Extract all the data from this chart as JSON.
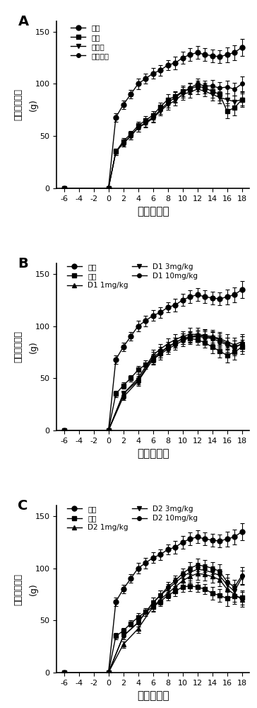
{
  "x_ticks": [
    -6,
    -4,
    -2,
    0,
    2,
    4,
    6,
    8,
    10,
    12,
    14,
    16,
    18
  ],
  "xlim": [
    -7,
    19
  ],
  "ylim": [
    0,
    160
  ],
  "yticks": [
    0,
    50,
    100,
    150
  ],
  "panel_labels": [
    "A",
    "B",
    "C"
  ],
  "xlabel": "时间（天）",
  "ylabel": "动物体重增长",
  "ylabel_unit": "(g)",
  "A": {
    "series": [
      {
        "label": "正常",
        "marker": "o",
        "x": [
          -6,
          0,
          1,
          2,
          3,
          4,
          5,
          6,
          7,
          8,
          9,
          10,
          11,
          12,
          13,
          14,
          15,
          16,
          17,
          18
        ],
        "y": [
          0,
          0,
          68,
          80,
          90,
          100,
          105,
          110,
          113,
          118,
          120,
          125,
          128,
          130,
          128,
          127,
          126,
          128,
          130,
          135
        ],
        "yerr": [
          0,
          0,
          4,
          4,
          4,
          5,
          5,
          5,
          5,
          5,
          6,
          6,
          6,
          6,
          6,
          6,
          6,
          7,
          7,
          8
        ]
      },
      {
        "label": "模型",
        "marker": "s",
        "x": [
          -6,
          0,
          1,
          2,
          3,
          4,
          5,
          6,
          7,
          8,
          9,
          10,
          11,
          12,
          13,
          14,
          15,
          16,
          17,
          18
        ],
        "y": [
          0,
          0,
          35,
          45,
          52,
          60,
          65,
          70,
          78,
          85,
          88,
          93,
          95,
          98,
          96,
          93,
          90,
          74,
          77,
          85
        ],
        "yerr": [
          0,
          0,
          3,
          3,
          3,
          4,
          4,
          4,
          4,
          5,
          5,
          5,
          5,
          5,
          5,
          6,
          6,
          7,
          7,
          7
        ]
      },
      {
        "label": "波生坦",
        "marker": "v",
        "x": [
          -6,
          0,
          1,
          2,
          3,
          4,
          5,
          6,
          7,
          8,
          9,
          10,
          11,
          12,
          13,
          14,
          15,
          16,
          17,
          18
        ],
        "y": [
          0,
          0,
          35,
          43,
          50,
          58,
          62,
          67,
          74,
          80,
          84,
          90,
          92,
          95,
          93,
          90,
          87,
          85,
          83,
          85
        ],
        "yerr": [
          0,
          0,
          3,
          3,
          3,
          4,
          4,
          4,
          4,
          5,
          5,
          5,
          5,
          5,
          5,
          6,
          6,
          6,
          6,
          6
        ]
      },
      {
        "label": "法舒地尔",
        "marker": "o",
        "markersize": 4,
        "x": [
          -6,
          0,
          1,
          2,
          3,
          4,
          5,
          6,
          7,
          8,
          9,
          10,
          11,
          12,
          13,
          14,
          15,
          16,
          17,
          18
        ],
        "y": [
          0,
          0,
          35,
          43,
          50,
          58,
          63,
          68,
          75,
          82,
          87,
          92,
          96,
          100,
          98,
          98,
          96,
          97,
          95,
          100
        ],
        "yerr": [
          0,
          0,
          3,
          3,
          3,
          4,
          4,
          4,
          4,
          5,
          5,
          5,
          5,
          5,
          5,
          6,
          6,
          6,
          6,
          7
        ]
      }
    ]
  },
  "B": {
    "series": [
      {
        "label": "正常",
        "marker": "o",
        "x": [
          -6,
          0,
          1,
          2,
          3,
          4,
          5,
          6,
          7,
          8,
          9,
          10,
          11,
          12,
          13,
          14,
          15,
          16,
          17,
          18
        ],
        "y": [
          0,
          0,
          68,
          80,
          90,
          100,
          105,
          110,
          113,
          118,
          120,
          125,
          128,
          130,
          128,
          127,
          126,
          128,
          130,
          135
        ],
        "yerr": [
          0,
          0,
          4,
          4,
          4,
          5,
          5,
          5,
          5,
          5,
          6,
          6,
          6,
          6,
          6,
          6,
          6,
          7,
          7,
          8
        ]
      },
      {
        "label": "模型",
        "marker": "s",
        "x": [
          -6,
          0,
          1,
          2,
          3,
          4,
          5,
          6,
          7,
          8,
          9,
          10,
          11,
          12,
          13,
          14,
          15,
          16,
          17,
          18
        ],
        "y": [
          0,
          0,
          35,
          43,
          50,
          58,
          63,
          68,
          74,
          80,
          84,
          88,
          88,
          87,
          84,
          80,
          76,
          72,
          75,
          80
        ],
        "yerr": [
          0,
          0,
          3,
          3,
          3,
          4,
          4,
          4,
          4,
          5,
          5,
          5,
          5,
          5,
          5,
          6,
          6,
          7,
          7,
          7
        ]
      },
      {
        "label": "D1 1mg/kg",
        "marker": "^",
        "x": [
          -6,
          0,
          2,
          4,
          6,
          7,
          8,
          9,
          10,
          11,
          12,
          13,
          14,
          15,
          16,
          17,
          18
        ],
        "y": [
          0,
          0,
          35,
          50,
          72,
          78,
          83,
          87,
          90,
          92,
          92,
          91,
          90,
          88,
          85,
          82,
          85
        ],
        "yerr": [
          0,
          0,
          3,
          4,
          5,
          5,
          5,
          5,
          5,
          6,
          6,
          6,
          6,
          6,
          7,
          7,
          7
        ]
      },
      {
        "label": "D1 3mg/kg",
        "marker": "v",
        "x": [
          -6,
          0,
          2,
          4,
          6,
          7,
          8,
          9,
          10,
          11,
          12,
          13,
          14,
          15,
          16,
          17,
          18
        ],
        "y": [
          0,
          0,
          35,
          48,
          70,
          75,
          80,
          84,
          88,
          90,
          91,
          90,
          89,
          87,
          83,
          80,
          83
        ],
        "yerr": [
          0,
          0,
          3,
          4,
          5,
          5,
          5,
          5,
          5,
          5,
          5,
          6,
          6,
          6,
          6,
          6,
          7
        ]
      },
      {
        "label": "D1 10mg/kg",
        "marker": "o",
        "markersize": 4,
        "x": [
          -6,
          0,
          2,
          4,
          6,
          7,
          8,
          9,
          10,
          11,
          12,
          13,
          14,
          15,
          16,
          17,
          18
        ],
        "y": [
          0,
          0,
          32,
          47,
          68,
          73,
          78,
          82,
          86,
          89,
          90,
          89,
          88,
          85,
          82,
          79,
          83
        ],
        "yerr": [
          0,
          0,
          3,
          4,
          5,
          5,
          5,
          5,
          5,
          5,
          5,
          6,
          6,
          6,
          7,
          7,
          7
        ]
      }
    ]
  },
  "C": {
    "series": [
      {
        "label": "正常",
        "marker": "o",
        "x": [
          -6,
          0,
          1,
          2,
          3,
          4,
          5,
          6,
          7,
          8,
          9,
          10,
          11,
          12,
          13,
          14,
          15,
          16,
          17,
          18
        ],
        "y": [
          0,
          0,
          68,
          80,
          90,
          100,
          105,
          110,
          113,
          118,
          120,
          125,
          128,
          130,
          128,
          127,
          126,
          128,
          130,
          135
        ],
        "yerr": [
          0,
          0,
          4,
          4,
          4,
          5,
          5,
          5,
          5,
          5,
          6,
          6,
          6,
          6,
          6,
          6,
          6,
          7,
          7,
          8
        ]
      },
      {
        "label": "模型",
        "marker": "s",
        "x": [
          -6,
          0,
          1,
          2,
          3,
          4,
          5,
          6,
          7,
          8,
          9,
          10,
          11,
          12,
          13,
          14,
          15,
          16,
          17,
          18
        ],
        "y": [
          0,
          0,
          35,
          40,
          47,
          53,
          58,
          63,
          68,
          74,
          78,
          82,
          83,
          82,
          80,
          76,
          74,
          71,
          73,
          72
        ],
        "yerr": [
          0,
          0,
          3,
          3,
          3,
          4,
          4,
          4,
          4,
          5,
          5,
          5,
          5,
          5,
          5,
          6,
          6,
          7,
          7,
          7
        ]
      },
      {
        "label": "D2 1mg/kg",
        "marker": "^",
        "x": [
          -6,
          0,
          2,
          4,
          6,
          7,
          8,
          9,
          10,
          11,
          12,
          13,
          14,
          15,
          16,
          17,
          18
        ],
        "y": [
          0,
          0,
          27,
          42,
          63,
          70,
          76,
          82,
          88,
          92,
          95,
          94,
          92,
          89,
          80,
          75,
          70
        ],
        "yerr": [
          0,
          0,
          3,
          4,
          5,
          5,
          5,
          5,
          5,
          6,
          6,
          6,
          6,
          6,
          7,
          7,
          7
        ]
      },
      {
        "label": "D2 3mg/kg",
        "marker": "v",
        "x": [
          -6,
          0,
          2,
          4,
          6,
          7,
          8,
          9,
          10,
          11,
          12,
          13,
          14,
          15,
          16,
          17,
          18
        ],
        "y": [
          0,
          0,
          35,
          48,
          67,
          74,
          80,
          86,
          92,
          96,
          99,
          98,
          96,
          93,
          84,
          78,
          91
        ],
        "yerr": [
          0,
          0,
          3,
          4,
          5,
          5,
          5,
          5,
          5,
          6,
          6,
          6,
          6,
          6,
          7,
          7,
          7
        ]
      },
      {
        "label": "D2 10mg/kg",
        "marker": "o",
        "markersize": 4,
        "x": [
          -6,
          0,
          2,
          4,
          6,
          7,
          8,
          9,
          10,
          11,
          12,
          13,
          14,
          15,
          16,
          17,
          18
        ],
        "y": [
          0,
          0,
          35,
          48,
          67,
          74,
          82,
          88,
          95,
          100,
          103,
          102,
          100,
          97,
          87,
          82,
          93
        ],
        "yerr": [
          0,
          0,
          3,
          4,
          5,
          5,
          5,
          5,
          5,
          6,
          6,
          6,
          6,
          7,
          7,
          7,
          8
        ]
      }
    ]
  }
}
